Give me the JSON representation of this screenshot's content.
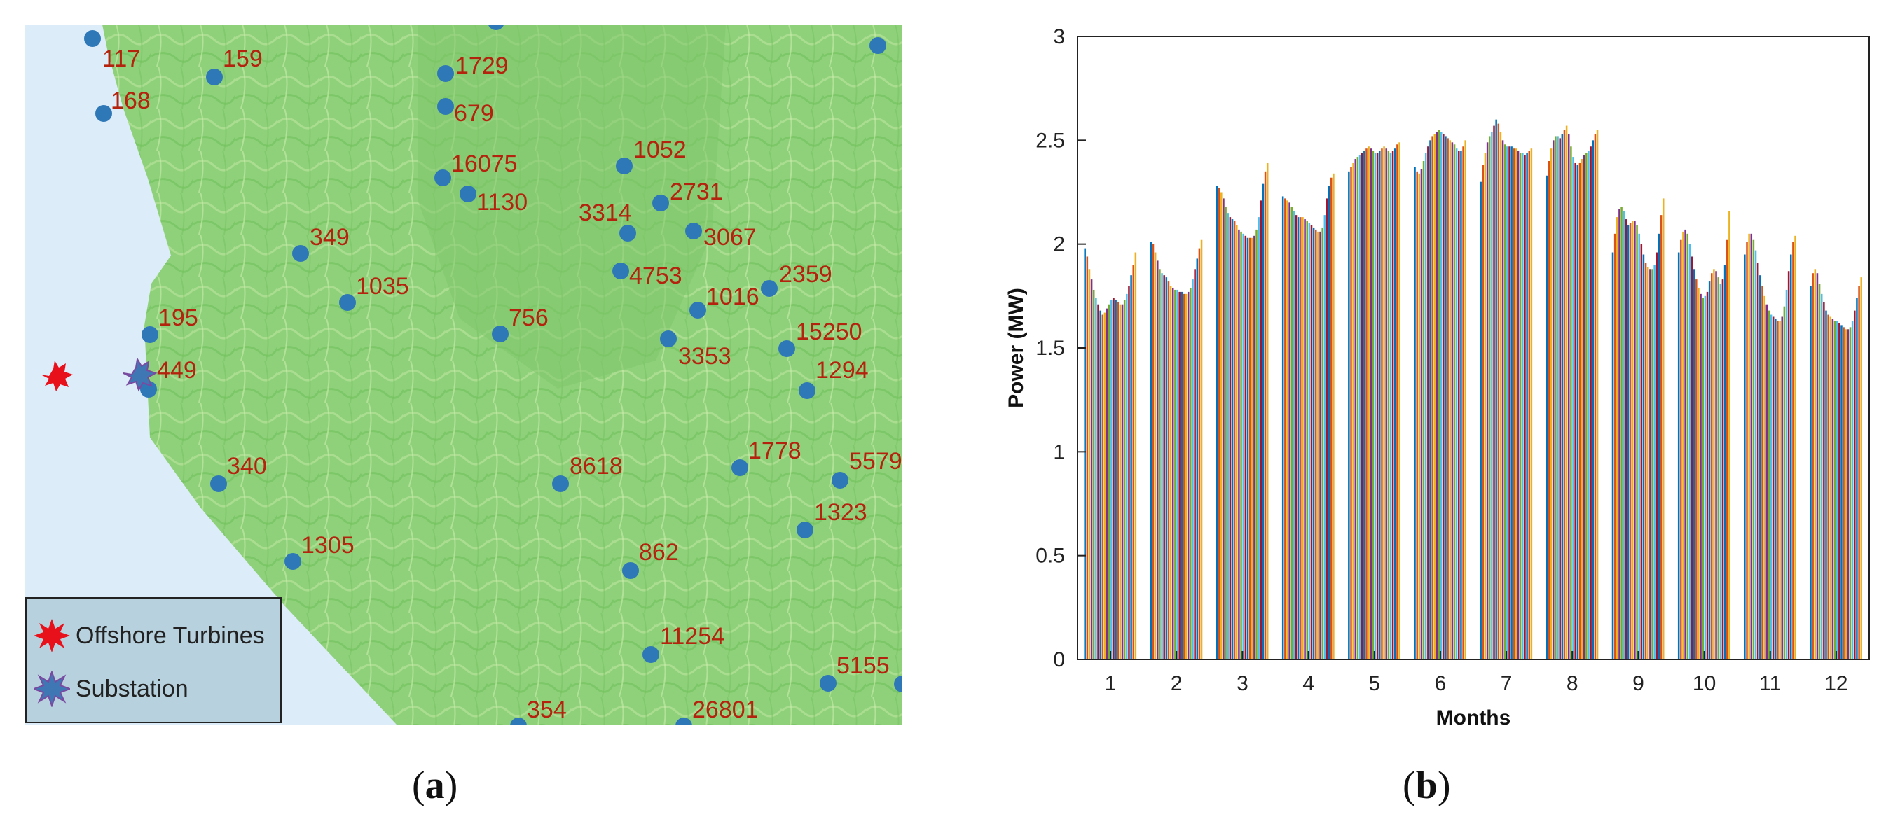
{
  "panel_a": {
    "caption": "a",
    "legend": {
      "items": [
        {
          "label": "Offshore Turbines",
          "icon": "red-star-icon",
          "color": "#e8101a"
        },
        {
          "label": "Substation",
          "icon": "blue-star-icon",
          "color": "#3f77b5"
        }
      ]
    },
    "colors": {
      "sea": "#dcecf8",
      "land": "#8fd17a",
      "dot": "#2f78b8",
      "label": "#b4230e"
    },
    "sites": [
      {
        "label": "117"
      },
      {
        "label": "159"
      },
      {
        "label": "168"
      },
      {
        "label": "1729"
      },
      {
        "label": "679"
      },
      {
        "label": "16075"
      },
      {
        "label": "1130"
      },
      {
        "label": "1052"
      },
      {
        "label": "3314"
      },
      {
        "label": "2731"
      },
      {
        "label": "3067"
      },
      {
        "label": "349"
      },
      {
        "label": "1035"
      },
      {
        "label": "4753"
      },
      {
        "label": "1016"
      },
      {
        "label": "2359"
      },
      {
        "label": "195"
      },
      {
        "label": "756"
      },
      {
        "label": "3353"
      },
      {
        "label": "15250"
      },
      {
        "label": "449"
      },
      {
        "label": "1294"
      },
      {
        "label": "1778"
      },
      {
        "label": "5579"
      },
      {
        "label": "340"
      },
      {
        "label": "8618"
      },
      {
        "label": "1323"
      },
      {
        "label": "1305"
      },
      {
        "label": "862"
      },
      {
        "label": "11254"
      },
      {
        "label": "5155"
      },
      {
        "label": "26801"
      },
      {
        "label": "354"
      }
    ]
  },
  "panel_b": {
    "caption": "b",
    "chart_data": {
      "type": "bar",
      "xlabel": "Months",
      "ylabel": "Power (MW)",
      "ylim": [
        0,
        3
      ],
      "yticks": [
        0,
        0.5,
        1,
        1.5,
        2,
        2.5,
        3
      ],
      "categories": [
        "1",
        "2",
        "3",
        "4",
        "5",
        "6",
        "7",
        "8",
        "9",
        "10",
        "11",
        "12"
      ],
      "grid": false,
      "bars_per_month": 24,
      "series_colors": [
        "#0072bd",
        "#d95319",
        "#edb120",
        "#7e2f8e",
        "#77ac30",
        "#4dbeee",
        "#a2142f"
      ],
      "monthly_profiles": [
        {
          "month": "1",
          "values": [
            1.98,
            1.94,
            1.88,
            1.83,
            1.78,
            1.74,
            1.71,
            1.68,
            1.66,
            1.67,
            1.69,
            1.71,
            1.73,
            1.74,
            1.73,
            1.72,
            1.71,
            1.71,
            1.73,
            1.76,
            1.8,
            1.85,
            1.9,
            1.96
          ]
        },
        {
          "month": "2",
          "values": [
            2.01,
            2.0,
            1.96,
            1.92,
            1.88,
            1.86,
            1.85,
            1.84,
            1.82,
            1.8,
            1.79,
            1.78,
            1.78,
            1.77,
            1.77,
            1.76,
            1.76,
            1.77,
            1.79,
            1.83,
            1.88,
            1.93,
            1.98,
            2.02
          ]
        },
        {
          "month": "3",
          "values": [
            2.28,
            2.27,
            2.25,
            2.22,
            2.18,
            2.15,
            2.13,
            2.12,
            2.11,
            2.09,
            2.07,
            2.06,
            2.05,
            2.04,
            2.03,
            2.03,
            2.03,
            2.04,
            2.07,
            2.13,
            2.21,
            2.29,
            2.35,
            2.39
          ]
        },
        {
          "month": "4",
          "values": [
            2.23,
            2.22,
            2.21,
            2.2,
            2.18,
            2.16,
            2.14,
            2.13,
            2.13,
            2.13,
            2.12,
            2.11,
            2.1,
            2.09,
            2.08,
            2.07,
            2.06,
            2.06,
            2.08,
            2.14,
            2.22,
            2.28,
            2.32,
            2.34
          ]
        },
        {
          "month": "5",
          "values": [
            2.35,
            2.37,
            2.39,
            2.41,
            2.42,
            2.43,
            2.44,
            2.45,
            2.46,
            2.47,
            2.46,
            2.45,
            2.44,
            2.44,
            2.45,
            2.46,
            2.47,
            2.46,
            2.45,
            2.44,
            2.45,
            2.46,
            2.48,
            2.49
          ]
        },
        {
          "month": "6",
          "values": [
            2.37,
            2.35,
            2.34,
            2.36,
            2.4,
            2.44,
            2.47,
            2.5,
            2.52,
            2.53,
            2.54,
            2.55,
            2.54,
            2.53,
            2.52,
            2.51,
            2.5,
            2.49,
            2.48,
            2.46,
            2.45,
            2.45,
            2.47,
            2.5
          ]
        },
        {
          "month": "7",
          "values": [
            2.3,
            2.38,
            2.44,
            2.49,
            2.52,
            2.54,
            2.57,
            2.6,
            2.58,
            2.54,
            2.5,
            2.48,
            2.47,
            2.47,
            2.47,
            2.46,
            2.46,
            2.45,
            2.44,
            2.44,
            2.43,
            2.44,
            2.45,
            2.46
          ]
        },
        {
          "month": "8",
          "values": [
            2.33,
            2.4,
            2.46,
            2.5,
            2.52,
            2.52,
            2.51,
            2.53,
            2.55,
            2.57,
            2.53,
            2.47,
            2.42,
            2.39,
            2.38,
            2.39,
            2.41,
            2.43,
            2.44,
            2.45,
            2.47,
            2.5,
            2.53,
            2.55
          ]
        },
        {
          "month": "9",
          "values": [
            1.96,
            2.05,
            2.13,
            2.17,
            2.18,
            2.16,
            2.12,
            2.09,
            2.1,
            2.11,
            2.11,
            2.09,
            2.05,
            2.0,
            1.95,
            1.91,
            1.89,
            1.88,
            1.88,
            1.9,
            1.96,
            2.05,
            2.14,
            2.22
          ]
        },
        {
          "month": "10",
          "values": [
            1.96,
            2.02,
            2.06,
            2.07,
            2.05,
            2.0,
            1.94,
            1.88,
            1.83,
            1.79,
            1.76,
            1.74,
            1.75,
            1.77,
            1.82,
            1.86,
            1.88,
            1.87,
            1.84,
            1.81,
            1.83,
            1.9,
            2.02,
            2.16
          ]
        },
        {
          "month": "11",
          "values": [
            1.95,
            2.01,
            2.05,
            2.05,
            2.02,
            1.97,
            1.91,
            1.85,
            1.8,
            1.75,
            1.71,
            1.68,
            1.66,
            1.65,
            1.64,
            1.63,
            1.63,
            1.65,
            1.7,
            1.78,
            1.87,
            1.95,
            2.01,
            2.04
          ]
        },
        {
          "month": "12",
          "values": [
            1.8,
            1.86,
            1.88,
            1.86,
            1.81,
            1.76,
            1.72,
            1.68,
            1.66,
            1.65,
            1.64,
            1.63,
            1.63,
            1.62,
            1.61,
            1.6,
            1.59,
            1.59,
            1.6,
            1.63,
            1.68,
            1.74,
            1.8,
            1.84
          ]
        }
      ]
    }
  },
  "captions": {
    "a": "a",
    "b": "b"
  }
}
